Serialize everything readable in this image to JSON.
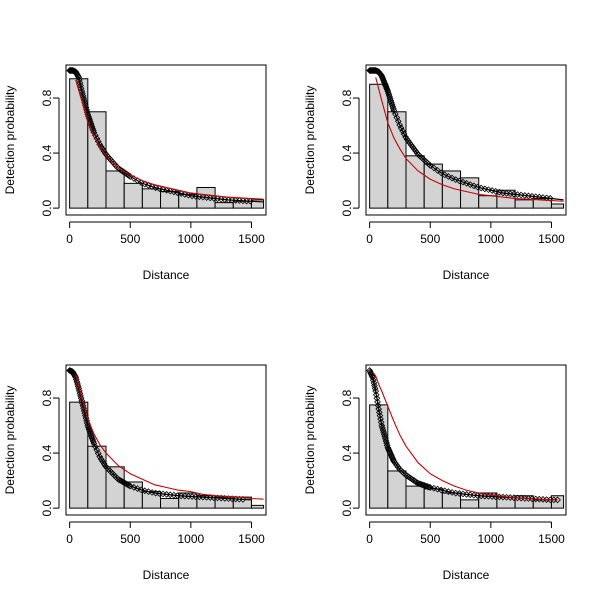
{
  "chart_data": [
    {
      "type": "histogram",
      "xlabel": "Distance",
      "ylabel": "Detection probability",
      "xlim": [
        -30,
        1620
      ],
      "ylim": [
        -0.05,
        1.04
      ],
      "xticks": [
        "0",
        "500",
        "1000",
        "1500"
      ],
      "yticks": [
        "0.0",
        "0.4",
        "0.8"
      ],
      "bins": [
        0,
        150,
        300,
        450,
        600,
        750,
        900,
        1050,
        1200,
        1350,
        1500,
        1600
      ],
      "values": [
        0.94,
        0.7,
        0.27,
        0.18,
        0.14,
        0.12,
        0.1,
        0.15,
        0.04,
        0.05,
        0.06
      ],
      "series": [
        {
          "name": "",
          "color": "#000000",
          "x": [
            0,
            25,
            50,
            75,
            100,
            150,
            200,
            250,
            300,
            400,
            500,
            600,
            700,
            800,
            900,
            1000,
            1100,
            1200,
            1300,
            1400,
            1500,
            1600
          ],
          "y": [
            1.0,
            1.0,
            0.99,
            0.95,
            0.85,
            0.68,
            0.55,
            0.46,
            0.39,
            0.29,
            0.23,
            0.18,
            0.15,
            0.13,
            0.11,
            0.09,
            0.08,
            0.07,
            0.06,
            0.055,
            0.05,
            0.045
          ]
        },
        {
          "name": "",
          "color": "#cc0000",
          "x": [
            50,
            100,
            150,
            200,
            250,
            300,
            400,
            500,
            600,
            700,
            800,
            900,
            1000,
            1100,
            1200,
            1300,
            1400,
            1500,
            1600
          ],
          "y": [
            0.93,
            0.78,
            0.63,
            0.52,
            0.44,
            0.38,
            0.29,
            0.24,
            0.2,
            0.17,
            0.15,
            0.13,
            0.11,
            0.1,
            0.09,
            0.08,
            0.075,
            0.07,
            0.065
          ]
        }
      ],
      "points_range": [
        0,
        1500
      ],
      "point_shape": "diamond"
    },
    {
      "type": "histogram",
      "xlabel": "Distance",
      "ylabel": "Detection probability",
      "xlim": [
        -30,
        1620
      ],
      "ylim": [
        -0.05,
        1.04
      ],
      "xticks": [
        "0",
        "500",
        "1000",
        "1500"
      ],
      "yticks": [
        "0.0",
        "0.4",
        "0.8"
      ],
      "bins": [
        0,
        150,
        300,
        450,
        600,
        750,
        900,
        1050,
        1200,
        1350,
        1500,
        1600
      ],
      "values": [
        0.9,
        0.7,
        0.38,
        0.32,
        0.27,
        0.22,
        0.09,
        0.13,
        0.06,
        0.07,
        0.03
      ],
      "series": [
        {
          "name": "",
          "color": "#000000",
          "x": [
            0,
            25,
            50,
            75,
            100,
            150,
            200,
            250,
            300,
            400,
            500,
            600,
            700,
            800,
            900,
            1000,
            1100,
            1200,
            1300,
            1400,
            1500,
            1600
          ],
          "y": [
            1.0,
            1.0,
            1.0,
            0.99,
            0.96,
            0.85,
            0.71,
            0.6,
            0.51,
            0.39,
            0.31,
            0.25,
            0.21,
            0.18,
            0.15,
            0.13,
            0.11,
            0.1,
            0.09,
            0.08,
            0.07,
            0.06
          ]
        },
        {
          "name": "",
          "color": "#cc0000",
          "x": [
            50,
            100,
            150,
            200,
            250,
            300,
            400,
            500,
            600,
            700,
            800,
            900,
            1000,
            1100,
            1200,
            1300,
            1400,
            1500,
            1600
          ],
          "y": [
            0.95,
            0.78,
            0.62,
            0.51,
            0.43,
            0.36,
            0.27,
            0.21,
            0.17,
            0.14,
            0.12,
            0.1,
            0.09,
            0.08,
            0.07,
            0.065,
            0.06,
            0.055,
            0.05
          ]
        }
      ],
      "points_range": [
        0,
        1500
      ],
      "point_shape": "diamond"
    },
    {
      "type": "histogram",
      "xlabel": "Distance",
      "ylabel": "Detection probability",
      "xlim": [
        -30,
        1620
      ],
      "ylim": [
        -0.05,
        1.04
      ],
      "xticks": [
        "0",
        "500",
        "1000",
        "1500"
      ],
      "yticks": [
        "0.0",
        "0.4",
        "0.8"
      ],
      "bins": [
        0,
        150,
        300,
        450,
        600,
        750,
        900,
        1050,
        1200,
        1350,
        1500,
        1600
      ],
      "values": [
        0.77,
        0.45,
        0.3,
        0.19,
        0.12,
        0.07,
        0.11,
        0.09,
        0.08,
        0.08,
        0.02
      ],
      "series": [
        {
          "name": "",
          "color": "#000000",
          "x": [
            0,
            25,
            50,
            75,
            100,
            150,
            200,
            250,
            300,
            400,
            500,
            600,
            700,
            800,
            900,
            1000,
            1100,
            1200,
            1300,
            1400,
            1500
          ],
          "y": [
            1.0,
            0.99,
            0.95,
            0.87,
            0.78,
            0.6,
            0.47,
            0.37,
            0.3,
            0.21,
            0.16,
            0.13,
            0.11,
            0.1,
            0.09,
            0.085,
            0.08,
            0.075,
            0.07,
            0.065,
            0.06
          ]
        },
        {
          "name": "",
          "color": "#cc0000",
          "x": [
            50,
            100,
            150,
            200,
            250,
            300,
            400,
            500,
            600,
            700,
            800,
            900,
            1000,
            1100,
            1200,
            1300,
            1400,
            1500,
            1600
          ],
          "y": [
            0.97,
            0.8,
            0.65,
            0.54,
            0.46,
            0.4,
            0.31,
            0.25,
            0.21,
            0.17,
            0.15,
            0.13,
            0.12,
            0.1,
            0.09,
            0.085,
            0.08,
            0.07,
            0.065
          ]
        }
      ],
      "points_range": [
        0,
        1450
      ],
      "point_shape": "diamond"
    },
    {
      "type": "histogram",
      "xlabel": "Distance",
      "ylabel": "Detection probability",
      "xlim": [
        -30,
        1620
      ],
      "ylim": [
        -0.05,
        1.04
      ],
      "xticks": [
        "0",
        "500",
        "1000",
        "1500"
      ],
      "yticks": [
        "0.0",
        "0.4",
        "0.8"
      ],
      "bins": [
        0,
        150,
        300,
        450,
        600,
        750,
        900,
        1050,
        1200,
        1350,
        1500,
        1600
      ],
      "values": [
        0.75,
        0.27,
        0.16,
        0.14,
        0.11,
        0.06,
        0.11,
        0.08,
        0.09,
        0.06,
        0.09
      ],
      "series": [
        {
          "name": "",
          "color": "#000000",
          "x": [
            0,
            25,
            50,
            75,
            100,
            150,
            200,
            250,
            300,
            400,
            500,
            600,
            700,
            800,
            900,
            1000,
            1100,
            1200,
            1300,
            1400,
            1500,
            1550
          ],
          "y": [
            1.0,
            0.95,
            0.85,
            0.72,
            0.6,
            0.44,
            0.34,
            0.28,
            0.24,
            0.18,
            0.15,
            0.13,
            0.11,
            0.1,
            0.09,
            0.085,
            0.08,
            0.075,
            0.07,
            0.065,
            0.06,
            0.06
          ]
        },
        {
          "name": "",
          "color": "#cc0000",
          "x": [
            25,
            50,
            75,
            100,
            150,
            200,
            250,
            300,
            400,
            500,
            600,
            700,
            800,
            900,
            1000,
            1100,
            1200,
            1300,
            1400,
            1500,
            1550
          ],
          "y": [
            0.99,
            0.96,
            0.9,
            0.85,
            0.74,
            0.63,
            0.53,
            0.45,
            0.33,
            0.25,
            0.2,
            0.16,
            0.13,
            0.11,
            0.095,
            0.085,
            0.075,
            0.07,
            0.065,
            0.06,
            0.06
          ]
        }
      ],
      "points_range": [
        0,
        1550
      ],
      "point_shape": "diamond"
    }
  ]
}
